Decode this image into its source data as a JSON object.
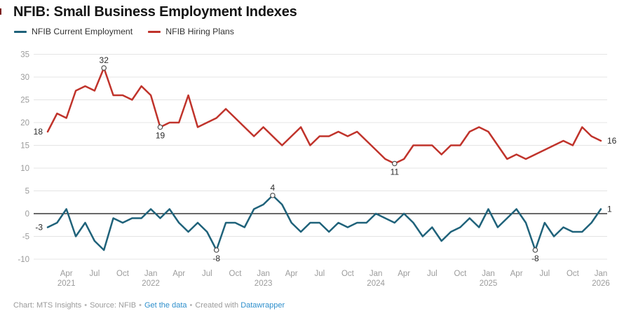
{
  "chart_data": {
    "type": "line",
    "title": "NFIB: Small Business Employment Indexes",
    "x_unit": "month",
    "months": [
      "Feb 2021",
      "Mar 2021",
      "Apr 2021",
      "May 2021",
      "Jun 2021",
      "Jul 2021",
      "Aug 2021",
      "Sep 2021",
      "Oct 2021",
      "Nov 2021",
      "Dec 2021",
      "Jan 2022",
      "Feb 2022",
      "Mar 2022",
      "Apr 2022",
      "May 2022",
      "Jun 2022",
      "Jul 2022",
      "Aug 2022",
      "Sep 2022",
      "Oct 2022",
      "Nov 2022",
      "Dec 2022",
      "Jan 2023",
      "Feb 2023",
      "Mar 2023",
      "Apr 2023",
      "May 2023",
      "Jun 2023",
      "Jul 2023",
      "Aug 2023",
      "Sep 2023",
      "Oct 2023",
      "Nov 2023",
      "Dec 2023",
      "Jan 2024",
      "Feb 2024",
      "Mar 2024",
      "Apr 2024",
      "May 2024",
      "Jun 2024",
      "Jul 2024",
      "Aug 2024",
      "Sep 2024",
      "Oct 2024",
      "Nov 2024",
      "Dec 2024",
      "Jan 2025",
      "Feb 2025",
      "Mar 2025",
      "Apr 2025",
      "May 2025",
      "Jun 2025",
      "Jul 2025",
      "Aug 2025",
      "Sep 2025",
      "Oct 2025",
      "Nov 2025",
      "Dec 2025",
      "Jan 2026"
    ],
    "series": [
      {
        "name": "NFIB Current Employment",
        "color": "#1f627a",
        "values": [
          -3,
          -2,
          1,
          -5,
          -2,
          -6,
          -8,
          -1,
          -2,
          -1,
          -1,
          1,
          -1,
          1,
          -2,
          -4,
          -2,
          -4,
          -8,
          -2,
          -2,
          -3,
          1,
          2,
          4,
          2,
          -2,
          -4,
          -2,
          -2,
          -4,
          -2,
          -3,
          -2,
          -2,
          0,
          -1,
          -2,
          0,
          -2,
          -5,
          -3,
          -6,
          -4,
          -3,
          -1,
          -3,
          1,
          -3,
          -1,
          1,
          -2,
          -8,
          -2,
          -5,
          -3,
          -4,
          -4,
          -2,
          1
        ]
      },
      {
        "name": "NFIB Hiring Plans",
        "color": "#c0332b",
        "values": [
          18,
          22,
          21,
          27,
          28,
          27,
          32,
          26,
          26,
          25,
          28,
          26,
          19,
          20,
          20,
          26,
          19,
          20,
          21,
          23,
          21,
          19,
          17,
          19,
          17,
          15,
          17,
          19,
          15,
          17,
          17,
          18,
          17,
          18,
          16,
          14,
          12,
          11,
          12,
          15,
          15,
          15,
          13,
          15,
          15,
          18,
          19,
          18,
          15,
          12,
          13,
          12,
          13,
          14,
          15,
          16,
          15,
          19,
          17,
          16
        ]
      }
    ],
    "y_axis": {
      "min": -10,
      "max": 35,
      "ticks": [
        35,
        30,
        25,
        20,
        15,
        10,
        5,
        0,
        -5,
        -10
      ],
      "zero_line": true,
      "grid": "horizontal"
    },
    "x_axis": {
      "ticks": [
        {
          "i": 2,
          "label": "Apr",
          "year": "2021"
        },
        {
          "i": 5,
          "label": "Jul"
        },
        {
          "i": 8,
          "label": "Oct"
        },
        {
          "i": 11,
          "label": "Jan",
          "year": "2022"
        },
        {
          "i": 14,
          "label": "Apr"
        },
        {
          "i": 17,
          "label": "Jul"
        },
        {
          "i": 20,
          "label": "Oct"
        },
        {
          "i": 23,
          "label": "Jan",
          "year": "2023"
        },
        {
          "i": 26,
          "label": "Apr"
        },
        {
          "i": 29,
          "label": "Jul"
        },
        {
          "i": 32,
          "label": "Oct"
        },
        {
          "i": 35,
          "label": "Jan",
          "year": "2024"
        },
        {
          "i": 38,
          "label": "Apr"
        },
        {
          "i": 41,
          "label": "Jul"
        },
        {
          "i": 44,
          "label": "Oct"
        },
        {
          "i": 47,
          "label": "Jan",
          "year": "2025"
        },
        {
          "i": 50,
          "label": "Apr"
        },
        {
          "i": 53,
          "label": "Jul"
        },
        {
          "i": 56,
          "label": "Oct"
        },
        {
          "i": 59,
          "label": "Jan",
          "year": "2026"
        }
      ]
    },
    "annotations": [
      {
        "series_index": 1,
        "index": 0,
        "label": "18",
        "placement": "left",
        "marker": false
      },
      {
        "series_index": 1,
        "index": 6,
        "label": "32",
        "placement": "above",
        "marker": true
      },
      {
        "series_index": 1,
        "index": 12,
        "label": "19",
        "placement": "below",
        "marker": true
      },
      {
        "series_index": 1,
        "index": 37,
        "label": "11",
        "placement": "below",
        "marker": true
      },
      {
        "series_index": 1,
        "index": 59,
        "label": "16",
        "placement": "right",
        "marker": false
      },
      {
        "series_index": 0,
        "index": 0,
        "label": "-3",
        "placement": "left",
        "marker": false
      },
      {
        "series_index": 0,
        "index": 24,
        "label": "4",
        "placement": "above",
        "marker": true
      },
      {
        "series_index": 0,
        "index": 18,
        "label": "-8",
        "placement": "below",
        "marker": true
      },
      {
        "series_index": 0,
        "index": 52,
        "label": "-8",
        "placement": "below",
        "marker": true
      },
      {
        "series_index": 0,
        "index": 59,
        "label": "1",
        "placement": "right",
        "marker": false
      }
    ],
    "legend_position": "top-left",
    "style_colors": {
      "grid": "#e4e4e4",
      "zero_line": "#111111",
      "tick_text": "#9b9b9b",
      "annotation_text": "#2b2b2b"
    }
  },
  "footer": {
    "chart_by": "Chart: MTS Insights",
    "source": "Source: NFIB",
    "get_data_link": "Get the data",
    "created_with": "Created with",
    "datawrapper_link": "Datawrapper",
    "separator": "•",
    "link_color": "#2e8fcc"
  }
}
